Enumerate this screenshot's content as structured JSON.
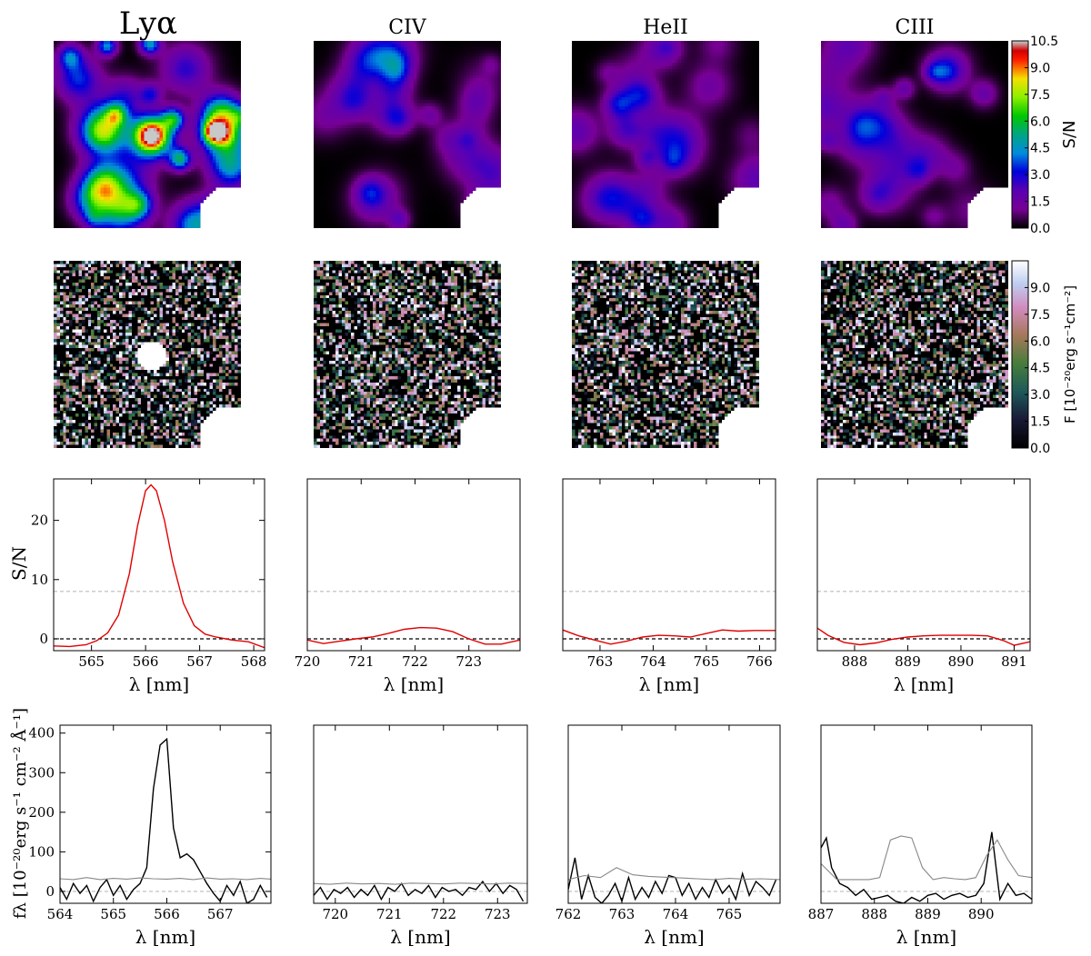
{
  "columns": [
    {
      "title": "Lyα"
    },
    {
      "title": "CIV"
    },
    {
      "title": "HeII"
    },
    {
      "title": "CIII"
    }
  ],
  "colorbars": [
    {
      "label": "S/N",
      "ticks": [
        "0.0",
        "1.5",
        "3.0",
        "4.5",
        "6.0",
        "7.5",
        "9.0",
        "10.5"
      ],
      "colormap": "nipy_spectral"
    },
    {
      "label": "F [10⁻²⁰erg s⁻¹cm⁻²]",
      "ticks": [
        "0.0",
        "1.5",
        "3.0",
        "4.5",
        "6.0",
        "7.5",
        "9.0"
      ],
      "colormap": "cubehelix"
    }
  ],
  "chart_data": [
    {
      "type": "heatmap",
      "row": "S/N map",
      "column": "Lyα",
      "feature": "bright central source",
      "peak": 10.5,
      "range": [
        0,
        10.5
      ],
      "colormap": "nipy_spectral"
    },
    {
      "type": "heatmap",
      "row": "S/N map",
      "column": "CIV",
      "feature": "noise",
      "peak": 3.5,
      "range": [
        0,
        10.5
      ],
      "colormap": "nipy_spectral"
    },
    {
      "type": "heatmap",
      "row": "S/N map",
      "column": "HeII",
      "feature": "noise",
      "peak": 3.5,
      "range": [
        0,
        10.5
      ],
      "colormap": "nipy_spectral"
    },
    {
      "type": "heatmap",
      "row": "S/N map",
      "column": "CIII",
      "feature": "noise",
      "peak": 3.5,
      "range": [
        0,
        10.5
      ],
      "colormap": "nipy_spectral"
    },
    {
      "type": "heatmap",
      "row": "flux map",
      "column": "Lyα",
      "feature": "bright central source",
      "range": [
        0,
        9.0
      ],
      "colormap": "cubehelix"
    },
    {
      "type": "heatmap",
      "row": "flux map",
      "column": "CIV",
      "feature": "noise",
      "range": [
        0,
        9.0
      ],
      "colormap": "cubehelix"
    },
    {
      "type": "heatmap",
      "row": "flux map",
      "column": "HeII",
      "feature": "noise",
      "range": [
        0,
        9.0
      ],
      "colormap": "cubehelix"
    },
    {
      "type": "heatmap",
      "row": "flux map",
      "column": "CIII",
      "feature": "noise",
      "range": [
        0,
        9.0
      ],
      "colormap": "cubehelix"
    },
    {
      "type": "line",
      "row": "S/N spectrum",
      "column": "Lyα",
      "xlabel": "λ [nm]",
      "ylabel": "S/N",
      "xlim": [
        564.3,
        568.2
      ],
      "ylim": [
        -2,
        27
      ],
      "xticks": [
        565,
        566,
        567,
        568
      ],
      "yticks": [
        0,
        10,
        20
      ],
      "hlines": [
        {
          "y": 0,
          "style": "dashed",
          "color": "#000000"
        },
        {
          "y": 8,
          "style": "dashed",
          "color": "#bbbbbb"
        }
      ],
      "series": [
        {
          "color": "#e00000",
          "x": [
            564.3,
            564.6,
            564.9,
            565.1,
            565.3,
            565.5,
            565.7,
            565.85,
            566.0,
            566.1,
            566.2,
            566.35,
            566.5,
            566.7,
            566.9,
            567.1,
            567.3,
            567.6,
            567.9,
            568.2
          ],
          "y": [
            -1.2,
            -1.3,
            -1.0,
            -0.3,
            1.0,
            4.0,
            11,
            19,
            25,
            26,
            25,
            20,
            13,
            6,
            2.2,
            0.8,
            0.3,
            -0.2,
            -0.5,
            -1.5
          ]
        }
      ]
    },
    {
      "type": "line",
      "row": "S/N spectrum",
      "column": "CIV",
      "xlabel": "λ [nm]",
      "ylabel": "",
      "xlim": [
        720,
        723.95
      ],
      "ylim": [
        -2,
        27
      ],
      "xticks": [
        720,
        721,
        722,
        723
      ],
      "yticks": [],
      "hlines": [
        {
          "y": 0,
          "style": "dashed",
          "color": "#000000"
        },
        {
          "y": 8,
          "style": "dashed",
          "color": "#bbbbbb"
        }
      ],
      "series": [
        {
          "color": "#e00000",
          "x": [
            720,
            720.3,
            720.6,
            720.9,
            721.2,
            721.5,
            721.8,
            722.1,
            722.4,
            722.7,
            723.0,
            723.3,
            723.6,
            723.95
          ],
          "y": [
            -0.2,
            -0.8,
            -0.4,
            0.0,
            0.3,
            0.9,
            1.6,
            1.9,
            1.8,
            1.2,
            0.0,
            -0.9,
            -0.9,
            -0.2
          ]
        }
      ]
    },
    {
      "type": "line",
      "row": "S/N spectrum",
      "column": "HeII",
      "xlabel": "λ [nm]",
      "ylabel": "",
      "xlim": [
        762.3,
        766.3
      ],
      "ylim": [
        -2,
        27
      ],
      "xticks": [
        763,
        764,
        765,
        766
      ],
      "yticks": [],
      "hlines": [
        {
          "y": 0,
          "style": "dashed",
          "color": "#000000"
        },
        {
          "y": 8,
          "style": "dashed",
          "color": "#bbbbbb"
        }
      ],
      "series": [
        {
          "color": "#e00000",
          "x": [
            762.3,
            762.6,
            762.9,
            763.2,
            763.5,
            763.8,
            764.1,
            764.4,
            764.7,
            765.0,
            765.3,
            765.6,
            765.9,
            766.3
          ],
          "y": [
            1.5,
            0.5,
            -0.2,
            -0.9,
            -0.4,
            0.3,
            0.6,
            0.5,
            0.3,
            0.9,
            1.5,
            1.3,
            1.4,
            1.4
          ]
        }
      ]
    },
    {
      "type": "line",
      "row": "S/N spectrum",
      "column": "CIII",
      "xlabel": "λ [nm]",
      "ylabel": "",
      "xlim": [
        887.3,
        891.3
      ],
      "ylim": [
        -2,
        27
      ],
      "xticks": [
        888,
        889,
        890,
        891
      ],
      "yticks": [],
      "hlines": [
        {
          "y": 0,
          "style": "dashed",
          "color": "#000000"
        },
        {
          "y": 8,
          "style": "dashed",
          "color": "#bbbbbb"
        }
      ],
      "series": [
        {
          "color": "#e00000",
          "x": [
            887.3,
            887.5,
            887.8,
            888.1,
            888.4,
            888.7,
            889.0,
            889.3,
            889.6,
            889.9,
            890.2,
            890.5,
            890.8,
            891.0,
            891.3
          ],
          "y": [
            1.8,
            0.6,
            -0.6,
            -1.0,
            -0.7,
            -0.1,
            0.3,
            0.5,
            0.6,
            0.6,
            0.6,
            0.5,
            -0.3,
            -1.1,
            -0.5
          ]
        }
      ]
    },
    {
      "type": "line",
      "row": "flux spectrum",
      "column": "Lyα",
      "xlabel": "λ [nm]",
      "ylabel": "fλ [10⁻²⁰erg s⁻¹ cm⁻² Å⁻¹]",
      "xlim": [
        564,
        567.95
      ],
      "ylim": [
        -30,
        420
      ],
      "xticks": [
        564,
        565,
        566,
        567
      ],
      "yticks": [
        0,
        100,
        200,
        300,
        400
      ],
      "hlines": [
        {
          "y": 0,
          "style": "dashed",
          "color": "#bbbbbb"
        }
      ],
      "series": [
        {
          "name": "",
          "color": "#000000",
          "x": [
            564.0,
            564.125,
            564.25,
            564.375,
            564.5,
            564.625,
            564.75,
            564.875,
            565.0,
            565.125,
            565.25,
            565.375,
            565.5,
            565.625,
            565.75,
            565.875,
            566.0,
            566.125,
            566.25,
            566.375,
            566.5,
            566.625,
            566.75,
            566.875,
            567.0,
            567.125,
            567.25,
            567.375,
            567.5,
            567.625,
            567.75,
            567.875
          ],
          "y": [
            10,
            -20,
            20,
            -5,
            15,
            -25,
            10,
            30,
            -10,
            15,
            -20,
            5,
            20,
            60,
            260,
            370,
            385,
            160,
            85,
            95,
            80,
            50,
            20,
            -5,
            -25,
            15,
            -10,
            25,
            -30,
            -20,
            15,
            -15
          ]
        },
        {
          "name": "",
          "color": "#888888",
          "x": [
            564.0,
            564.25,
            564.5,
            564.75,
            565.0,
            565.25,
            565.5,
            565.75,
            566.0,
            566.25,
            566.5,
            566.75,
            567.0,
            567.25,
            567.5,
            567.75,
            567.95
          ],
          "y": [
            32,
            30,
            35,
            30,
            33,
            31,
            34,
            32,
            31,
            33,
            30,
            34,
            31,
            32,
            30,
            33,
            31
          ]
        }
      ]
    },
    {
      "type": "line",
      "row": "flux spectrum",
      "column": "CIV",
      "xlabel": "λ [nm]",
      "ylabel": "",
      "xlim": [
        719.6,
        723.55
      ],
      "ylim": [
        -30,
        420
      ],
      "xticks": [
        720,
        721,
        722,
        723
      ],
      "yticks": [],
      "hlines": [
        {
          "y": 0,
          "style": "dashed",
          "color": "#bbbbbb"
        }
      ],
      "series": [
        {
          "name": "",
          "color": "#000000",
          "x": [
            719.6,
            719.725,
            719.85,
            719.975,
            720.1,
            720.225,
            720.35,
            720.475,
            720.6,
            720.725,
            720.85,
            720.975,
            721.1,
            721.225,
            721.35,
            721.475,
            721.6,
            721.725,
            721.85,
            721.975,
            722.1,
            722.225,
            722.35,
            722.475,
            722.6,
            722.725,
            722.85,
            722.975,
            723.1,
            723.225,
            723.35,
            723.475
          ],
          "y": [
            -10,
            10,
            -20,
            5,
            -5,
            10,
            -15,
            5,
            -10,
            15,
            -20,
            10,
            0,
            20,
            -10,
            5,
            -5,
            15,
            -15,
            10,
            0,
            5,
            -10,
            10,
            5,
            25,
            0,
            20,
            -5,
            15,
            5,
            -25
          ]
        },
        {
          "name": "",
          "color": "#888888",
          "x": [
            719.6,
            719.9,
            720.2,
            720.5,
            720.8,
            721.1,
            721.4,
            721.7,
            722.0,
            722.3,
            722.6,
            722.9,
            723.2,
            723.55
          ],
          "y": [
            20,
            18,
            21,
            19,
            20,
            18,
            21,
            20,
            19,
            21,
            20,
            19,
            21,
            20
          ]
        }
      ]
    },
    {
      "type": "line",
      "row": "flux spectrum",
      "column": "HeII",
      "xlabel": "λ [nm]",
      "ylabel": "",
      "xlim": [
        762,
        765.95
      ],
      "ylim": [
        -30,
        420
      ],
      "xticks": [
        762,
        763,
        764,
        765
      ],
      "yticks": [],
      "hlines": [
        {
          "y": 0,
          "style": "dashed",
          "color": "#bbbbbb"
        }
      ],
      "series": [
        {
          "name": "",
          "color": "#000000",
          "x": [
            762.0,
            762.125,
            762.25,
            762.375,
            762.5,
            762.625,
            762.75,
            762.875,
            763.0,
            763.125,
            763.25,
            763.375,
            763.5,
            763.625,
            763.75,
            763.875,
            764.0,
            764.125,
            764.25,
            764.375,
            764.5,
            764.625,
            764.75,
            764.875,
            765.0,
            765.125,
            765.25,
            765.375,
            765.5,
            765.625,
            765.75,
            765.875
          ],
          "y": [
            5,
            85,
            -20,
            40,
            -15,
            -30,
            -10,
            20,
            -25,
            35,
            -20,
            10,
            -15,
            25,
            -5,
            40,
            35,
            -10,
            20,
            -20,
            10,
            -15,
            30,
            -5,
            15,
            -20,
            45,
            -10,
            25,
            10,
            -10,
            30
          ]
        },
        {
          "name": "",
          "color": "#888888",
          "x": [
            762.0,
            762.3,
            762.6,
            762.9,
            763.2,
            763.5,
            763.8,
            764.1,
            764.4,
            764.7,
            765.0,
            765.3,
            765.6,
            765.95
          ],
          "y": [
            30,
            40,
            35,
            60,
            42,
            38,
            36,
            34,
            32,
            30,
            33,
            31,
            32,
            30
          ]
        }
      ]
    },
    {
      "type": "line",
      "row": "flux spectrum",
      "column": "CIII",
      "xlabel": "λ [nm]",
      "ylabel": "",
      "xlim": [
        887,
        890.95
      ],
      "ylim": [
        -30,
        420
      ],
      "xticks": [
        887,
        888,
        889,
        890
      ],
      "yticks": [],
      "hlines": [
        {
          "y": 0,
          "style": "dashed",
          "color": "#bbbbbb"
        }
      ],
      "series": [
        {
          "name": "",
          "color": "#000000",
          "x": [
            887.0,
            887.1,
            887.2,
            887.35,
            887.5,
            887.65,
            887.8,
            887.95,
            888.1,
            888.25,
            888.4,
            888.55,
            888.7,
            888.85,
            889.0,
            889.15,
            889.3,
            889.45,
            889.6,
            889.75,
            889.9,
            890.05,
            890.2,
            890.35,
            890.5,
            890.65,
            890.8,
            890.95
          ],
          "y": [
            110,
            135,
            60,
            20,
            10,
            -10,
            5,
            -20,
            -15,
            -10,
            -25,
            -30,
            -15,
            -25,
            -10,
            -5,
            -20,
            -10,
            -5,
            -15,
            -10,
            20,
            150,
            -20,
            20,
            -10,
            -5,
            -20
          ]
        },
        {
          "name": "",
          "color": "#888888",
          "x": [
            887.0,
            887.3,
            887.6,
            887.9,
            888.1,
            888.3,
            888.5,
            888.7,
            888.9,
            889.1,
            889.3,
            889.5,
            889.7,
            889.9,
            890.1,
            890.3,
            890.5,
            890.7,
            890.95
          ],
          "y": [
            70,
            30,
            30,
            30,
            35,
            130,
            140,
            135,
            60,
            30,
            35,
            32,
            30,
            35,
            90,
            130,
            80,
            40,
            35
          ]
        }
      ]
    }
  ]
}
